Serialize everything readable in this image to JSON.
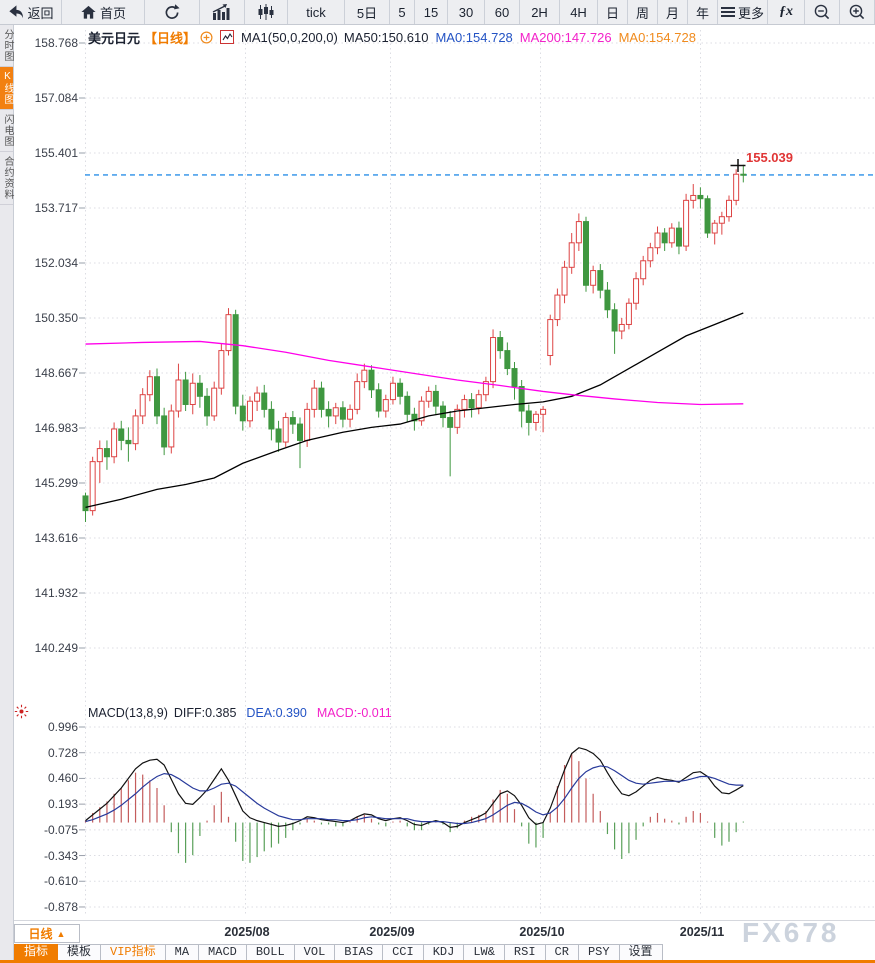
{
  "toolbar": {
    "items": [
      {
        "key": "back",
        "label": "返回",
        "icon": "back",
        "w": 62
      },
      {
        "key": "home",
        "label": "首页",
        "icon": "home",
        "w": 83
      },
      {
        "key": "refresh",
        "label": "",
        "icon": "refresh",
        "w": 55
      },
      {
        "key": "bar-chart",
        "label": "",
        "icon": "bar-chart",
        "w": 45
      },
      {
        "key": "candlestick",
        "label": "",
        "icon": "candlestick",
        "w": 43
      },
      {
        "key": "tick",
        "label": "tick",
        "icon": "",
        "w": 57
      },
      {
        "key": "5d",
        "label": "5日",
        "icon": "",
        "w": 45
      },
      {
        "key": "5m",
        "label": "5",
        "icon": "",
        "w": 25
      },
      {
        "key": "15m",
        "label": "15",
        "icon": "",
        "w": 33
      },
      {
        "key": "30m",
        "label": "30",
        "icon": "",
        "w": 37
      },
      {
        "key": "60m",
        "label": "60",
        "icon": "",
        "w": 35
      },
      {
        "key": "2h",
        "label": "2H",
        "icon": "",
        "w": 40
      },
      {
        "key": "4h",
        "label": "4H",
        "icon": "",
        "w": 38
      },
      {
        "key": "day",
        "label": "日",
        "icon": "",
        "w": 30
      },
      {
        "key": "week",
        "label": "周",
        "icon": "",
        "w": 30
      },
      {
        "key": "month",
        "label": "月",
        "icon": "",
        "w": 30
      },
      {
        "key": "year",
        "label": "年",
        "icon": "",
        "w": 30
      },
      {
        "key": "more",
        "label": "更多",
        "icon": "menu",
        "w": 50
      },
      {
        "key": "fx",
        "label": "ƒx",
        "icon": "fx",
        "w": 37
      },
      {
        "key": "zoom-out",
        "label": "",
        "icon": "zoom-out",
        "w": 35
      },
      {
        "key": "zoom-in",
        "label": "",
        "icon": "zoom-in",
        "w": 35
      }
    ]
  },
  "sidebar": {
    "items": [
      {
        "key": "time-share",
        "label": "分时图",
        "active": false
      },
      {
        "key": "kline",
        "label": "K线图",
        "active": true
      },
      {
        "key": "lightning",
        "label": "闪电图",
        "active": false
      },
      {
        "key": "contract-info",
        "label": "合约资料",
        "active": false
      }
    ]
  },
  "chart_header": {
    "symbol": "美元日元",
    "period": "【日线】",
    "ma_settings": "MA1(50,0,200,0)",
    "ma50": "MA50:150.610",
    "ma0_blue": "MA0:154.728",
    "ma200": "MA200:147.726",
    "ma0_orange": "MA0:154.728"
  },
  "price_axis": {
    "labels": [
      "158.768",
      "157.084",
      "155.401",
      "153.717",
      "152.034",
      "150.350",
      "148.667",
      "146.983",
      "145.299",
      "143.616",
      "141.932",
      "140.249"
    ]
  },
  "current_price_label": "155.039",
  "macd_header": {
    "title": "MACD(13,8,9)",
    "diff": "DIFF:0.385",
    "dea": "DEA:0.390",
    "macd": "MACD:-0.011"
  },
  "macd_axis": {
    "labels": [
      "0.996",
      "0.728",
      "0.460",
      "0.193",
      "-0.075",
      "-0.343",
      "-0.610",
      "-0.878"
    ]
  },
  "x_axis": {
    "labels": [
      "2025/08",
      "2025/09",
      "2025/10",
      "2025/11"
    ]
  },
  "watermark": "FX678",
  "period_selector": {
    "label": "日线",
    "arrow": "▲"
  },
  "bottom_tabs": {
    "items": [
      {
        "key": "indicators",
        "label": "指标",
        "active": true,
        "orange_text": false
      },
      {
        "key": "templates",
        "label": "模板",
        "active": false,
        "orange_text": false
      },
      {
        "key": "vip-indicators",
        "label": "VIP指标",
        "active": false,
        "orange_text": true
      },
      {
        "key": "ma",
        "label": "MA",
        "active": false,
        "orange_text": false
      },
      {
        "key": "macd",
        "label": "MACD",
        "active": false,
        "orange_text": false
      },
      {
        "key": "boll",
        "label": "BOLL",
        "active": false,
        "orange_text": false
      },
      {
        "key": "vol",
        "label": "VOL",
        "active": false,
        "orange_text": false
      },
      {
        "key": "bias",
        "label": "BIAS",
        "active": false,
        "orange_text": false
      },
      {
        "key": "cci",
        "label": "CCI",
        "active": false,
        "orange_text": false
      },
      {
        "key": "kdj",
        "label": "KDJ",
        "active": false,
        "orange_text": false
      },
      {
        "key": "lw",
        "label": "LW&",
        "active": false,
        "orange_text": false
      },
      {
        "key": "rsi",
        "label": "RSI",
        "active": false,
        "orange_text": false
      },
      {
        "key": "cr",
        "label": "CR",
        "active": false,
        "orange_text": false
      },
      {
        "key": "psy",
        "label": "PSY",
        "active": false,
        "orange_text": false
      },
      {
        "key": "settings",
        "label": "设置",
        "active": false,
        "orange_text": false
      }
    ]
  },
  "colors": {
    "accent_orange": "#f07c00",
    "candle_up": "#dd4444",
    "candle_down": "#3f9740",
    "ma50_line": "#000000",
    "ma200_line": "#ff00ea",
    "close_dash_line": "#2a8fe8",
    "diff_line": "#111111",
    "dea_line": "#283a9b",
    "hist_up": "#c45c5c",
    "hist_down": "#5aa05a",
    "price_flag_red": "#e03535",
    "header_blue": "#2353c4",
    "header_magenta": "#f321c9",
    "header_orange": "#f08b1e",
    "watermark_gray": "#ccd3dd",
    "grid": "#dcdde3",
    "tick": "#9aa0ab"
  },
  "chart_data": {
    "type": "candlestick",
    "title": "USD/JPY (美元日元) daily with MA50/MA200 and MACD(13,8,9)",
    "price_axis_values": [
      158.768,
      157.084,
      155.401,
      153.717,
      152.034,
      150.35,
      148.667,
      146.983,
      145.299,
      143.616,
      141.932,
      140.249
    ],
    "macd_axis_values": [
      0.996,
      0.728,
      0.46,
      0.193,
      -0.075,
      -0.343,
      -0.61,
      -0.878
    ],
    "months": [
      "2025/08",
      "2025/09",
      "2025/10",
      "2025/11"
    ],
    "current_price": 155.039,
    "close": 154.728,
    "ma50_value": 150.61,
    "ma200_value": 147.726,
    "diff_value": 0.385,
    "dea_value": 0.39,
    "macd_value": -0.011,
    "candles": [
      [
        144.9,
        145.0,
        144.1,
        144.45
      ],
      [
        144.45,
        146.1,
        144.3,
        145.95
      ],
      [
        145.95,
        146.6,
        145.3,
        146.35
      ],
      [
        146.35,
        146.6,
        145.7,
        146.1
      ],
      [
        146.1,
        147.15,
        145.9,
        146.95
      ],
      [
        146.95,
        147.2,
        146.3,
        146.6
      ],
      [
        146.6,
        147.0,
        145.95,
        146.5
      ],
      [
        146.5,
        147.55,
        146.3,
        147.35
      ],
      [
        147.35,
        148.2,
        147.1,
        148.0
      ],
      [
        148.0,
        148.75,
        147.8,
        148.55
      ],
      [
        148.55,
        148.8,
        147.1,
        147.35
      ],
      [
        147.35,
        147.6,
        146.15,
        146.4
      ],
      [
        146.4,
        147.7,
        146.2,
        147.5
      ],
      [
        147.5,
        148.95,
        147.3,
        148.45
      ],
      [
        148.45,
        148.7,
        147.5,
        147.7
      ],
      [
        147.7,
        148.65,
        147.4,
        148.35
      ],
      [
        148.35,
        148.6,
        147.6,
        147.95
      ],
      [
        147.95,
        148.2,
        147.05,
        147.35
      ],
      [
        147.35,
        148.4,
        147.2,
        148.2
      ],
      [
        148.2,
        149.55,
        148.0,
        149.35
      ],
      [
        149.35,
        150.65,
        149.2,
        150.45
      ],
      [
        150.45,
        150.6,
        147.4,
        147.65
      ],
      [
        147.65,
        148.0,
        146.9,
        147.2
      ],
      [
        147.2,
        147.95,
        147.0,
        147.8
      ],
      [
        147.8,
        148.25,
        147.5,
        148.05
      ],
      [
        148.05,
        148.3,
        147.3,
        147.55
      ],
      [
        147.55,
        147.8,
        146.6,
        146.95
      ],
      [
        146.95,
        147.2,
        146.25,
        146.55
      ],
      [
        146.55,
        147.45,
        146.4,
        147.3
      ],
      [
        147.3,
        147.5,
        146.8,
        147.1
      ],
      [
        147.1,
        147.3,
        145.75,
        146.6
      ],
      [
        146.6,
        147.75,
        146.4,
        147.55
      ],
      [
        147.55,
        148.45,
        147.3,
        148.2
      ],
      [
        148.2,
        148.4,
        147.3,
        147.55
      ],
      [
        147.55,
        147.8,
        147.0,
        147.35
      ],
      [
        147.35,
        147.75,
        147.1,
        147.6
      ],
      [
        147.6,
        147.8,
        147.0,
        147.25
      ],
      [
        147.25,
        147.7,
        147.0,
        147.55
      ],
      [
        147.55,
        148.65,
        147.4,
        148.4
      ],
      [
        148.4,
        148.95,
        148.2,
        148.75
      ],
      [
        148.75,
        148.9,
        147.9,
        148.15
      ],
      [
        148.15,
        148.35,
        147.3,
        147.5
      ],
      [
        147.5,
        148.0,
        147.3,
        147.85
      ],
      [
        147.85,
        148.55,
        147.7,
        148.35
      ],
      [
        148.35,
        148.5,
        147.7,
        147.95
      ],
      [
        147.95,
        148.1,
        147.15,
        147.4
      ],
      [
        147.4,
        147.6,
        146.9,
        147.2
      ],
      [
        147.2,
        147.95,
        147.05,
        147.8
      ],
      [
        147.8,
        148.25,
        147.6,
        148.1
      ],
      [
        148.1,
        148.3,
        147.4,
        147.65
      ],
      [
        147.65,
        147.8,
        147.0,
        147.3
      ],
      [
        147.3,
        147.5,
        145.5,
        147.0
      ],
      [
        147.0,
        147.7,
        146.8,
        147.55
      ],
      [
        147.55,
        148.0,
        147.3,
        147.85
      ],
      [
        147.85,
        148.05,
        147.3,
        147.6
      ],
      [
        147.6,
        148.15,
        147.4,
        148.0
      ],
      [
        148.0,
        148.55,
        147.8,
        148.4
      ],
      [
        148.4,
        150.0,
        148.2,
        149.75
      ],
      [
        149.75,
        149.95,
        149.1,
        149.35
      ],
      [
        149.35,
        149.6,
        148.6,
        148.8
      ],
      [
        148.8,
        149.0,
        147.85,
        148.25
      ],
      [
        148.25,
        148.45,
        147.0,
        147.5
      ],
      [
        147.5,
        147.7,
        146.75,
        147.15
      ],
      [
        147.15,
        147.5,
        146.9,
        147.4
      ],
      [
        147.4,
        147.65,
        146.85,
        147.55
      ],
      [
        149.2,
        150.45,
        148.9,
        150.3
      ],
      [
        150.3,
        151.25,
        150.1,
        151.05
      ],
      [
        151.05,
        152.1,
        150.8,
        151.9
      ],
      [
        151.9,
        152.95,
        151.7,
        152.65
      ],
      [
        152.65,
        153.55,
        152.4,
        153.3
      ],
      [
        153.3,
        153.45,
        151.15,
        151.35
      ],
      [
        151.35,
        151.95,
        151.1,
        151.8
      ],
      [
        151.8,
        152.0,
        150.95,
        151.2
      ],
      [
        151.2,
        151.45,
        150.35,
        150.6
      ],
      [
        150.6,
        150.8,
        149.25,
        149.95
      ],
      [
        149.95,
        150.35,
        149.7,
        150.15
      ],
      [
        150.15,
        150.95,
        150.0,
        150.8
      ],
      [
        150.8,
        151.75,
        150.6,
        151.55
      ],
      [
        151.55,
        152.25,
        151.35,
        152.1
      ],
      [
        152.1,
        152.65,
        151.9,
        152.5
      ],
      [
        152.5,
        153.15,
        152.3,
        152.95
      ],
      [
        152.95,
        153.1,
        152.4,
        152.65
      ],
      [
        152.65,
        153.25,
        152.5,
        153.1
      ],
      [
        153.1,
        153.3,
        152.3,
        152.55
      ],
      [
        152.55,
        154.15,
        152.4,
        153.95
      ],
      [
        153.95,
        154.45,
        153.7,
        154.1
      ],
      [
        154.1,
        154.35,
        153.7,
        154.0
      ],
      [
        154.0,
        154.1,
        152.8,
        152.95
      ],
      [
        152.95,
        153.35,
        152.6,
        153.25
      ],
      [
        153.25,
        153.6,
        152.9,
        153.45
      ],
      [
        153.45,
        154.1,
        153.3,
        153.95
      ],
      [
        153.95,
        154.9,
        153.8,
        154.75
      ],
      [
        154.75,
        155.04,
        154.5,
        154.73
      ]
    ],
    "ma50_points": [
      [
        0,
        144.55
      ],
      [
        5,
        144.8
      ],
      [
        10,
        145.1
      ],
      [
        14,
        145.25
      ],
      [
        18,
        145.45
      ],
      [
        22,
        145.9
      ],
      [
        27,
        146.3
      ],
      [
        31,
        146.6
      ],
      [
        36,
        146.85
      ],
      [
        40,
        147.0
      ],
      [
        44,
        147.1
      ],
      [
        48,
        147.35
      ],
      [
        52,
        147.5
      ],
      [
        56,
        147.6
      ],
      [
        60,
        147.7
      ],
      [
        64,
        147.78
      ],
      [
        68,
        147.95
      ],
      [
        72,
        148.3
      ],
      [
        76,
        148.8
      ],
      [
        80,
        149.3
      ],
      [
        84,
        149.8
      ],
      [
        88,
        150.15
      ],
      [
        92,
        150.5
      ]
    ],
    "ma200_points": [
      [
        0,
        149.55
      ],
      [
        8,
        149.6
      ],
      [
        16,
        149.63
      ],
      [
        22,
        149.5
      ],
      [
        28,
        149.3
      ],
      [
        34,
        149.05
      ],
      [
        40,
        148.85
      ],
      [
        46,
        148.65
      ],
      [
        52,
        148.45
      ],
      [
        58,
        148.28
      ],
      [
        64,
        148.1
      ],
      [
        68,
        148.0
      ],
      [
        74,
        147.87
      ],
      [
        80,
        147.76
      ],
      [
        86,
        147.7
      ],
      [
        92,
        147.72
      ]
    ],
    "macd": {
      "diff": [
        0.02,
        0.08,
        0.14,
        0.2,
        0.28,
        0.36,
        0.46,
        0.56,
        0.62,
        0.65,
        0.66,
        0.6,
        0.45,
        0.3,
        0.2,
        0.19,
        0.26,
        0.34,
        0.45,
        0.56,
        0.44,
        0.28,
        0.12,
        0.05,
        0.02,
        0.0,
        -0.02,
        -0.04,
        -0.03,
        -0.01,
        0.02,
        0.06,
        0.05,
        0.03,
        0.02,
        0.01,
        0.0,
        0.02,
        0.06,
        0.09,
        0.08,
        0.04,
        0.02,
        0.04,
        0.05,
        0.02,
        -0.02,
        -0.03,
        0.0,
        0.02,
        0.0,
        -0.05,
        -0.04,
        0.0,
        0.03,
        0.06,
        0.1,
        0.2,
        0.3,
        0.33,
        0.28,
        0.18,
        0.05,
        -0.02,
        0.0,
        0.15,
        0.35,
        0.55,
        0.72,
        0.78,
        0.76,
        0.72,
        0.65,
        0.52,
        0.4,
        0.3,
        0.28,
        0.32,
        0.38,
        0.44,
        0.47,
        0.45,
        0.44,
        0.42,
        0.47,
        0.52,
        0.53,
        0.48,
        0.38,
        0.31,
        0.3,
        0.34,
        0.385
      ],
      "dea": [
        0.01,
        0.03,
        0.06,
        0.09,
        0.13,
        0.18,
        0.24,
        0.3,
        0.37,
        0.43,
        0.48,
        0.51,
        0.5,
        0.46,
        0.41,
        0.36,
        0.33,
        0.33,
        0.36,
        0.4,
        0.41,
        0.38,
        0.32,
        0.26,
        0.2,
        0.15,
        0.11,
        0.07,
        0.05,
        0.03,
        0.03,
        0.04,
        0.04,
        0.04,
        0.03,
        0.03,
        0.02,
        0.02,
        0.03,
        0.05,
        0.06,
        0.05,
        0.04,
        0.04,
        0.04,
        0.04,
        0.02,
        0.01,
        0.01,
        0.01,
        0.01,
        0.0,
        -0.01,
        -0.01,
        0.0,
        0.02,
        0.04,
        0.08,
        0.13,
        0.18,
        0.21,
        0.2,
        0.16,
        0.11,
        0.08,
        0.1,
        0.16,
        0.25,
        0.36,
        0.46,
        0.53,
        0.57,
        0.59,
        0.58,
        0.54,
        0.49,
        0.44,
        0.41,
        0.4,
        0.41,
        0.42,
        0.43,
        0.43,
        0.43,
        0.44,
        0.46,
        0.48,
        0.48,
        0.46,
        0.43,
        0.4,
        0.39,
        0.39
      ]
    }
  }
}
